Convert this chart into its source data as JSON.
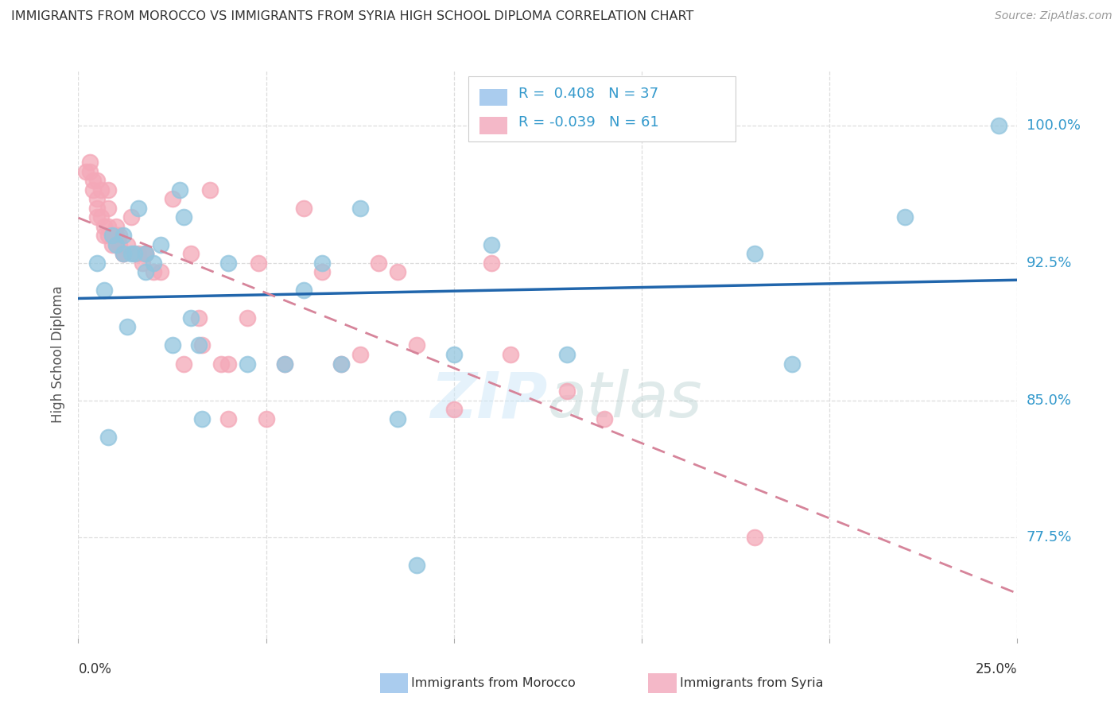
{
  "title": "IMMIGRANTS FROM MOROCCO VS IMMIGRANTS FROM SYRIA HIGH SCHOOL DIPLOMA CORRELATION CHART",
  "source": "Source: ZipAtlas.com",
  "ylabel": "High School Diploma",
  "ytick_labels": [
    "77.5%",
    "85.0%",
    "92.5%",
    "100.0%"
  ],
  "ytick_values": [
    0.775,
    0.85,
    0.925,
    1.0
  ],
  "xlim": [
    0.0,
    0.25
  ],
  "ylim": [
    0.72,
    1.03
  ],
  "watermark_zip": "ZIP",
  "watermark_atlas": "atlas",
  "legend_text_blue": "R =  0.408   N = 37",
  "legend_text_pink": "R = -0.039   N = 61",
  "blue_scatter_color": "#92c5de",
  "pink_scatter_color": "#f4a8b8",
  "blue_line_color": "#2166ac",
  "pink_line_color": "#d6849a",
  "blue_legend_color": "#aaccee",
  "pink_legend_color": "#f4b8c8",
  "ytick_color": "#3399cc",
  "title_color": "#333333",
  "source_color": "#999999",
  "grid_color": "#dddddd",
  "morocco_x": [
    0.005,
    0.007,
    0.008,
    0.009,
    0.01,
    0.012,
    0.012,
    0.013,
    0.014,
    0.015,
    0.016,
    0.018,
    0.018,
    0.02,
    0.022,
    0.025,
    0.027,
    0.028,
    0.03,
    0.032,
    0.033,
    0.04,
    0.045,
    0.055,
    0.06,
    0.065,
    0.07,
    0.075,
    0.085,
    0.09,
    0.1,
    0.11,
    0.13,
    0.18,
    0.19,
    0.22,
    0.245
  ],
  "morocco_y": [
    0.925,
    0.91,
    0.83,
    0.94,
    0.935,
    0.93,
    0.94,
    0.89,
    0.93,
    0.93,
    0.955,
    0.93,
    0.92,
    0.925,
    0.935,
    0.88,
    0.965,
    0.95,
    0.895,
    0.88,
    0.84,
    0.925,
    0.87,
    0.87,
    0.91,
    0.925,
    0.87,
    0.955,
    0.84,
    0.76,
    0.875,
    0.935,
    0.875,
    0.93,
    0.87,
    0.95,
    1.0
  ],
  "syria_x": [
    0.002,
    0.003,
    0.003,
    0.004,
    0.004,
    0.005,
    0.005,
    0.005,
    0.005,
    0.006,
    0.006,
    0.007,
    0.007,
    0.008,
    0.008,
    0.008,
    0.008,
    0.009,
    0.009,
    0.01,
    0.01,
    0.01,
    0.011,
    0.011,
    0.012,
    0.012,
    0.013,
    0.014,
    0.015,
    0.016,
    0.017,
    0.018,
    0.018,
    0.02,
    0.022,
    0.025,
    0.028,
    0.03,
    0.032,
    0.033,
    0.035,
    0.038,
    0.04,
    0.04,
    0.045,
    0.048,
    0.05,
    0.055,
    0.06,
    0.065,
    0.07,
    0.075,
    0.08,
    0.085,
    0.09,
    0.1,
    0.11,
    0.115,
    0.13,
    0.14,
    0.18
  ],
  "syria_y": [
    0.975,
    0.98,
    0.975,
    0.97,
    0.965,
    0.97,
    0.96,
    0.955,
    0.95,
    0.965,
    0.95,
    0.94,
    0.945,
    0.965,
    0.955,
    0.945,
    0.94,
    0.94,
    0.935,
    0.945,
    0.94,
    0.935,
    0.94,
    0.935,
    0.93,
    0.93,
    0.935,
    0.95,
    0.93,
    0.93,
    0.925,
    0.93,
    0.93,
    0.92,
    0.92,
    0.96,
    0.87,
    0.93,
    0.895,
    0.88,
    0.965,
    0.87,
    0.84,
    0.87,
    0.895,
    0.925,
    0.84,
    0.87,
    0.955,
    0.92,
    0.87,
    0.875,
    0.925,
    0.92,
    0.88,
    0.845,
    0.925,
    0.875,
    0.855,
    0.84,
    0.775
  ]
}
